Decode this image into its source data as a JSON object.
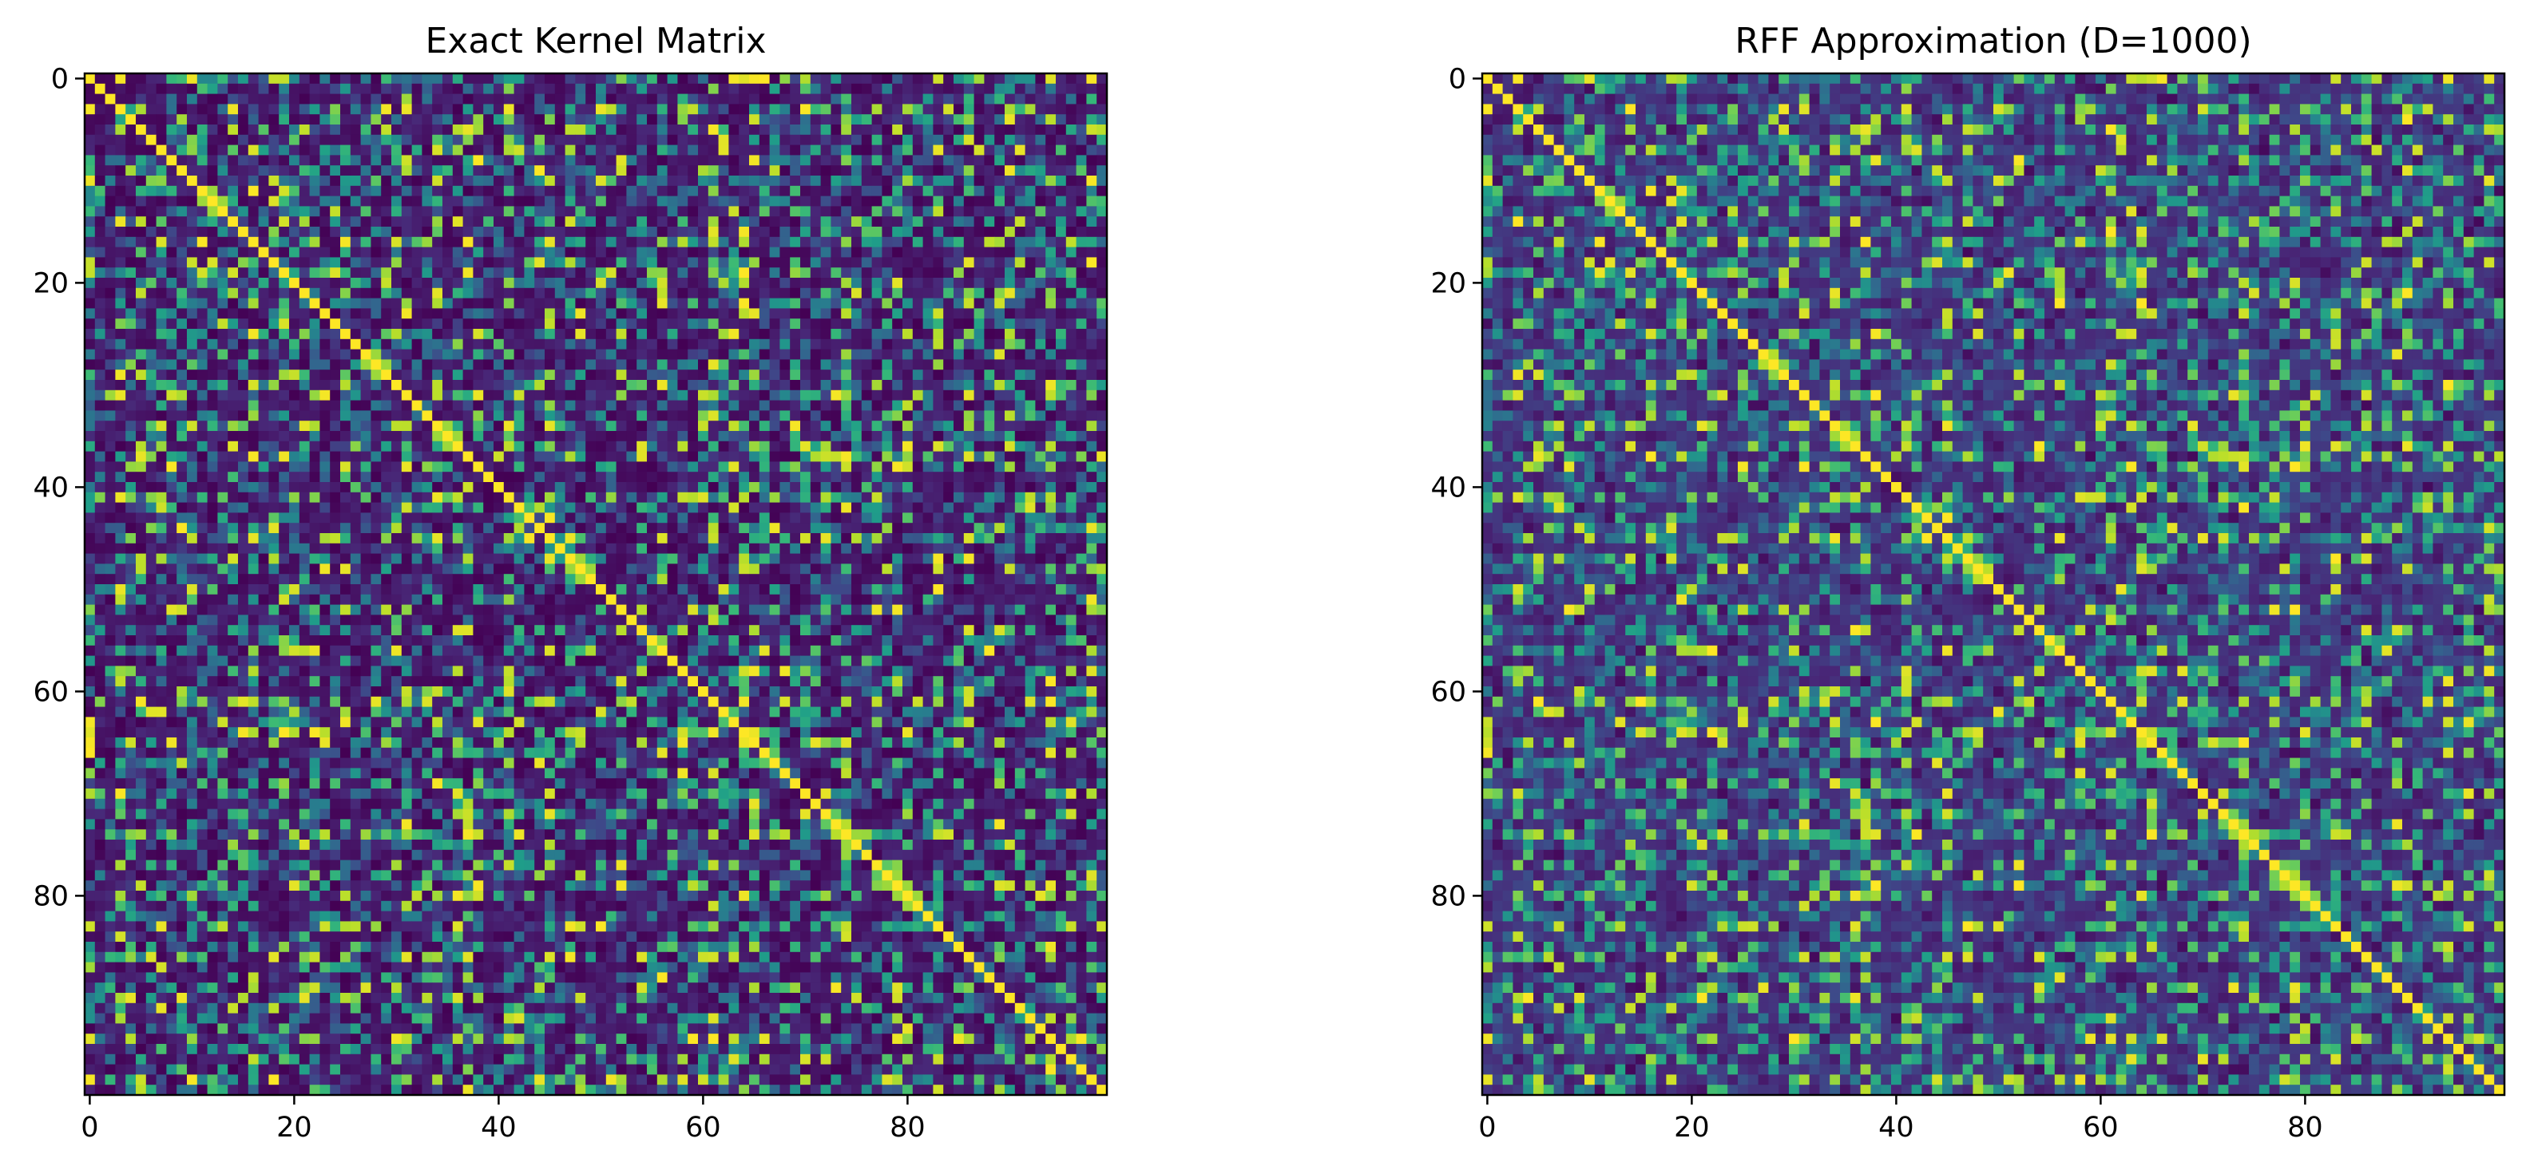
{
  "chart_data": [
    {
      "type": "heatmap",
      "title": "Exact Kernel Matrix",
      "xlabel": "",
      "ylabel": "",
      "size": 100,
      "xlim": [
        0,
        99
      ],
      "ylim": [
        99,
        0
      ],
      "x_ticks": [
        0,
        20,
        40,
        60,
        80
      ],
      "y_ticks": [
        0,
        20,
        40,
        60,
        80
      ],
      "x_tick_labels": [
        "0",
        "20",
        "40",
        "60",
        "80"
      ],
      "y_tick_labels": [
        "0",
        "20",
        "40",
        "60",
        "80"
      ],
      "colormap": "viridis",
      "value_range": [
        0,
        1
      ],
      "diagonal_value": 1.0,
      "off_diagonal_typical": "0.0–0.9 (mostly low, dark purple)",
      "grid": false
    },
    {
      "type": "heatmap",
      "title": "RFF Approximation (D=1000)",
      "xlabel": "",
      "ylabel": "",
      "size": 100,
      "xlim": [
        0,
        99
      ],
      "ylim": [
        99,
        0
      ],
      "x_ticks": [
        0,
        20,
        40,
        60,
        80
      ],
      "y_ticks": [
        0,
        20,
        40,
        60,
        80
      ],
      "x_tick_labels": [
        "0",
        "20",
        "40",
        "60",
        "80"
      ],
      "y_tick_labels": [
        "0",
        "20",
        "40",
        "60",
        "80"
      ],
      "colormap": "viridis",
      "value_range": [
        0,
        1
      ],
      "diagonal_value": 1.0,
      "off_diagonal_typical": "0.1–0.9 (noisier approximation of exact matrix)",
      "grid": false
    }
  ],
  "colors": {
    "viridis_stops": [
      "#440154",
      "#482878",
      "#3e4989",
      "#31688e",
      "#26828e",
      "#1f9e89",
      "#35b779",
      "#6ece58",
      "#b5de2b",
      "#fde725"
    ]
  }
}
